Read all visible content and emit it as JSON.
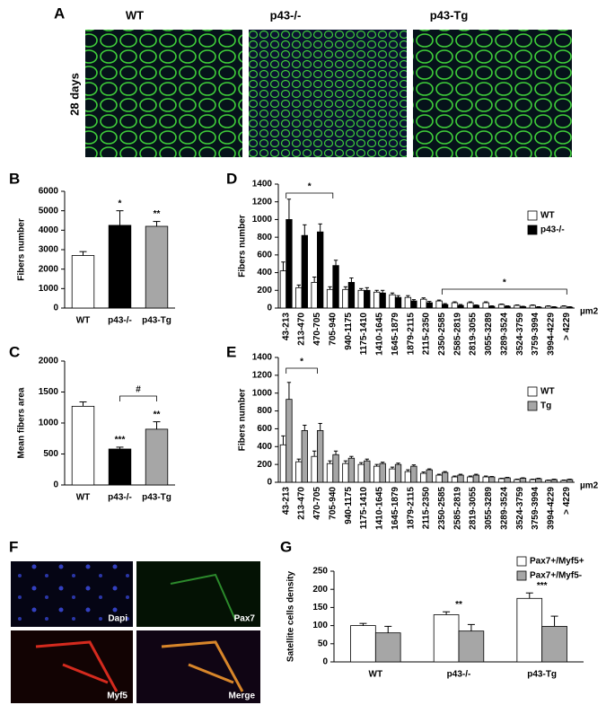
{
  "figure": {
    "panel_labels": [
      "A",
      "B",
      "C",
      "D",
      "E",
      "F",
      "G"
    ],
    "a_columns": [
      "WT",
      "p43-/-",
      "p43-Tg"
    ],
    "a_row": "28 days",
    "f_labels": [
      "Dapi",
      "Pax7",
      "Myf5",
      "Merge"
    ]
  },
  "chart_data": [
    {
      "type": "bar",
      "ylabel": "Fibers number",
      "categories": [
        "WT",
        "p43-/-",
        "p43-Tg"
      ],
      "series": [
        {
          "colors": [
            "#ffffff",
            "#000000",
            "#a6a6a6"
          ],
          "values": [
            2700,
            4250,
            4200
          ],
          "errors": [
            200,
            750,
            250
          ]
        }
      ],
      "ylim": [
        0,
        6000
      ],
      "yticks": [
        0,
        1000,
        2000,
        3000,
        4000,
        5000,
        6000
      ],
      "annotations": [
        "*",
        "**"
      ]
    },
    {
      "type": "bar",
      "ylabel": "Mean fibers area",
      "categories": [
        "WT",
        "p43-/-",
        "p43-Tg"
      ],
      "series": [
        {
          "colors": [
            "#ffffff",
            "#000000",
            "#a6a6a6"
          ],
          "values": [
            1270,
            580,
            900
          ],
          "errors": [
            70,
            30,
            120
          ]
        }
      ],
      "ylim": [
        0,
        2000
      ],
      "yticks": [
        0,
        500,
        1000,
        1500,
        2000
      ],
      "annotations": [
        "***",
        "**",
        "#"
      ]
    },
    {
      "type": "bar",
      "ylabel": "Fibers number",
      "x_unit": "µm2",
      "categories": [
        "43-213",
        "213-470",
        "470-705",
        "705-940",
        "940-1175",
        "1175-1410",
        "1410-1645",
        "1645-1879",
        "1879-2115",
        "2115-2350",
        "2350-2585",
        "2585-2819",
        "2819-3055",
        "3055-3289",
        "3289-3524",
        "3524-3759",
        "3759-3994",
        "3994-4229",
        "> 4229"
      ],
      "series": [
        {
          "name": "WT",
          "color": "#ffffff",
          "values": [
            420,
            230,
            290,
            210,
            210,
            200,
            180,
            150,
            120,
            100,
            80,
            60,
            60,
            60,
            40,
            30,
            30,
            20,
            20
          ],
          "errors": [
            100,
            30,
            60,
            30,
            30,
            20,
            20,
            20,
            20,
            15,
            10,
            10,
            10,
            10,
            5,
            5,
            5,
            5,
            5
          ]
        },
        {
          "name": "p43-/-",
          "color": "#000000",
          "values": [
            1000,
            820,
            860,
            480,
            290,
            200,
            170,
            120,
            80,
            60,
            40,
            30,
            30,
            20,
            20,
            15,
            10,
            10,
            10
          ],
          "errors": [
            230,
            120,
            90,
            60,
            50,
            30,
            30,
            20,
            15,
            15,
            10,
            10,
            5,
            5,
            5,
            5,
            5,
            5,
            5
          ]
        }
      ],
      "ylim": [
        0,
        1400
      ],
      "yticks": [
        0,
        200,
        400,
        600,
        800,
        1000,
        1200,
        1400
      ],
      "annotations": [
        "*",
        "*"
      ]
    },
    {
      "type": "bar",
      "ylabel": "Fibers number",
      "x_unit": "µm2",
      "categories": [
        "43-213",
        "213-470",
        "470-705",
        "705-940",
        "940-1175",
        "1175-1410",
        "1410-1645",
        "1645-1879",
        "1879-2115",
        "2115-2350",
        "2350-2585",
        "2585-2819",
        "2819-3055",
        "3055-3289",
        "3289-3524",
        "3524-3759",
        "3759-3994",
        "3994-4229",
        "> 4229"
      ],
      "series": [
        {
          "name": "WT",
          "color": "#ffffff",
          "values": [
            420,
            230,
            290,
            210,
            210,
            200,
            180,
            150,
            120,
            100,
            80,
            60,
            60,
            60,
            40,
            30,
            30,
            20,
            20
          ],
          "errors": [
            100,
            30,
            60,
            30,
            30,
            20,
            20,
            20,
            20,
            15,
            10,
            10,
            10,
            10,
            5,
            5,
            5,
            5,
            5
          ]
        },
        {
          "name": "Tg",
          "color": "#a6a6a6",
          "values": [
            930,
            580,
            580,
            310,
            270,
            240,
            210,
            200,
            180,
            140,
            110,
            80,
            80,
            60,
            50,
            45,
            40,
            30,
            30
          ],
          "errors": [
            190,
            60,
            80,
            40,
            20,
            20,
            15,
            15,
            15,
            10,
            10,
            10,
            10,
            5,
            5,
            5,
            5,
            5,
            5
          ]
        }
      ],
      "ylim": [
        0,
        1400
      ],
      "yticks": [
        0,
        200,
        400,
        600,
        800,
        1000,
        1200,
        1400
      ],
      "annotations": [
        "*"
      ]
    },
    {
      "type": "bar",
      "ylabel": "Satellite cells density",
      "categories": [
        "WT",
        "p43-/-",
        "p43-Tg"
      ],
      "series": [
        {
          "name": "Pax7+/Myf5+",
          "color": "#ffffff",
          "values": [
            100,
            130,
            175
          ],
          "errors": [
            6,
            8,
            15
          ]
        },
        {
          "name": "Pax7+/Myf5-",
          "color": "#a6a6a6",
          "values": [
            80,
            85,
            98
          ],
          "errors": [
            18,
            18,
            28
          ]
        }
      ],
      "ylim": [
        0,
        250
      ],
      "yticks": [
        0,
        50,
        100,
        150,
        200,
        250
      ],
      "annotations": [
        "**",
        "***"
      ]
    }
  ]
}
